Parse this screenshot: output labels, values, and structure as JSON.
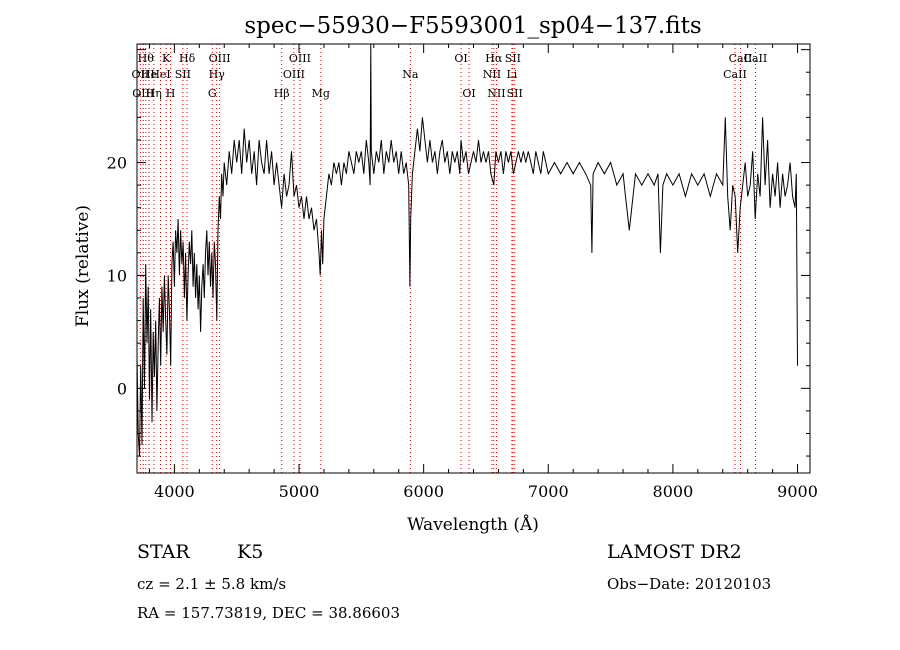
{
  "chart_data": {
    "type": "line",
    "title": "spec−55930−F5593001_sp04−137.fits",
    "xlabel": "Wavelength (Å)",
    "ylabel": "Flux (relative)",
    "xlim": [
      3700,
      9100
    ],
    "ylim": [
      -7.5,
      30.5
    ],
    "x_ticks": [
      4000,
      5000,
      6000,
      7000,
      8000,
      9000
    ],
    "y_ticks": [
      0,
      10,
      20
    ],
    "grid": false,
    "series": [
      {
        "values": [
          [
            3700,
            3
          ],
          [
            3710,
            -4
          ],
          [
            3720,
            -6
          ],
          [
            3730,
            2
          ],
          [
            3740,
            -5
          ],
          [
            3750,
            8
          ],
          [
            3760,
            0
          ],
          [
            3770,
            11
          ],
          [
            3780,
            4
          ],
          [
            3790,
            9
          ],
          [
            3800,
            -1
          ],
          [
            3810,
            7
          ],
          [
            3820,
            -3
          ],
          [
            3830,
            5
          ],
          [
            3840,
            1
          ],
          [
            3850,
            6
          ],
          [
            3860,
            -2
          ],
          [
            3870,
            4
          ],
          [
            3880,
            8
          ],
          [
            3890,
            2
          ],
          [
            3900,
            9
          ],
          [
            3910,
            5
          ],
          [
            3920,
            10
          ],
          [
            3930,
            6
          ],
          [
            3940,
            3
          ],
          [
            3950,
            10
          ],
          [
            3960,
            7
          ],
          [
            3970,
            2
          ],
          [
            3980,
            11
          ],
          [
            3990,
            13
          ],
          [
            4000,
            9
          ],
          [
            4010,
            14
          ],
          [
            4020,
            12
          ],
          [
            4030,
            15
          ],
          [
            4040,
            10
          ],
          [
            4050,
            14
          ],
          [
            4060,
            11
          ],
          [
            4070,
            13
          ],
          [
            4080,
            8
          ],
          [
            4090,
            12
          ],
          [
            4100,
            6
          ],
          [
            4110,
            10
          ],
          [
            4120,
            13
          ],
          [
            4130,
            11
          ],
          [
            4140,
            14
          ],
          [
            4150,
            9
          ],
          [
            4160,
            12
          ],
          [
            4170,
            8
          ],
          [
            4180,
            11
          ],
          [
            4190,
            7
          ],
          [
            4200,
            10
          ],
          [
            4210,
            5
          ],
          [
            4220,
            9
          ],
          [
            4230,
            11
          ],
          [
            4240,
            8
          ],
          [
            4250,
            12
          ],
          [
            4260,
            14
          ],
          [
            4270,
            10
          ],
          [
            4280,
            13
          ],
          [
            4290,
            9
          ],
          [
            4300,
            12
          ],
          [
            4310,
            8
          ],
          [
            4320,
            13
          ],
          [
            4330,
            11
          ],
          [
            4340,
            6
          ],
          [
            4350,
            14
          ],
          [
            4360,
            17
          ],
          [
            4370,
            15
          ],
          [
            4380,
            19
          ],
          [
            4390,
            17
          ],
          [
            4400,
            20
          ],
          [
            4420,
            18
          ],
          [
            4440,
            21
          ],
          [
            4460,
            19
          ],
          [
            4480,
            22
          ],
          [
            4500,
            20
          ],
          [
            4520,
            22
          ],
          [
            4540,
            19
          ],
          [
            4560,
            23
          ],
          [
            4580,
            20
          ],
          [
            4600,
            22
          ],
          [
            4620,
            19
          ],
          [
            4640,
            21
          ],
          [
            4660,
            18
          ],
          [
            4680,
            22
          ],
          [
            4700,
            20
          ],
          [
            4720,
            19
          ],
          [
            4740,
            22
          ],
          [
            4760,
            19
          ],
          [
            4780,
            21
          ],
          [
            4800,
            18
          ],
          [
            4820,
            20
          ],
          [
            4840,
            18
          ],
          [
            4860,
            16
          ],
          [
            4880,
            19
          ],
          [
            4900,
            17
          ],
          [
            4920,
            18
          ],
          [
            4940,
            21
          ],
          [
            4960,
            17
          ],
          [
            4980,
            18
          ],
          [
            5000,
            16
          ],
          [
            5020,
            17
          ],
          [
            5040,
            15
          ],
          [
            5060,
            17
          ],
          [
            5080,
            15
          ],
          [
            5100,
            16
          ],
          [
            5120,
            14
          ],
          [
            5140,
            15
          ],
          [
            5160,
            12
          ],
          [
            5170,
            10
          ],
          [
            5180,
            14
          ],
          [
            5190,
            11
          ],
          [
            5200,
            15
          ],
          [
            5220,
            17
          ],
          [
            5240,
            19
          ],
          [
            5260,
            18
          ],
          [
            5280,
            20
          ],
          [
            5300,
            19
          ],
          [
            5320,
            20
          ],
          [
            5340,
            18
          ],
          [
            5360,
            20
          ],
          [
            5380,
            19
          ],
          [
            5400,
            21
          ],
          [
            5420,
            20
          ],
          [
            5440,
            19
          ],
          [
            5460,
            21
          ],
          [
            5480,
            20
          ],
          [
            5500,
            21
          ],
          [
            5520,
            19
          ],
          [
            5540,
            22
          ],
          [
            5560,
            20
          ],
          [
            5570,
            18
          ],
          [
            5576,
            31
          ],
          [
            5580,
            21
          ],
          [
            5600,
            19
          ],
          [
            5620,
            21
          ],
          [
            5640,
            20
          ],
          [
            5660,
            22
          ],
          [
            5680,
            19
          ],
          [
            5700,
            21
          ],
          [
            5720,
            20
          ],
          [
            5740,
            22
          ],
          [
            5760,
            20
          ],
          [
            5780,
            21
          ],
          [
            5800,
            19
          ],
          [
            5820,
            21
          ],
          [
            5840,
            19
          ],
          [
            5860,
            20
          ],
          [
            5880,
            18
          ],
          [
            5890,
            9
          ],
          [
            5896,
            15
          ],
          [
            5910,
            19
          ],
          [
            5930,
            21
          ],
          [
            5950,
            23
          ],
          [
            5970,
            21
          ],
          [
            5990,
            24
          ],
          [
            6010,
            22
          ],
          [
            6030,
            20
          ],
          [
            6050,
            22
          ],
          [
            6070,
            20
          ],
          [
            6090,
            21
          ],
          [
            6110,
            19
          ],
          [
            6130,
            21
          ],
          [
            6150,
            22
          ],
          [
            6170,
            20
          ],
          [
            6190,
            21
          ],
          [
            6210,
            19
          ],
          [
            6230,
            21
          ],
          [
            6250,
            20
          ],
          [
            6270,
            21
          ],
          [
            6290,
            19
          ],
          [
            6300,
            22
          ],
          [
            6320,
            20
          ],
          [
            6340,
            21
          ],
          [
            6360,
            19
          ],
          [
            6380,
            20
          ],
          [
            6400,
            21
          ],
          [
            6420,
            20
          ],
          [
            6440,
            22
          ],
          [
            6460,
            20
          ],
          [
            6480,
            21
          ],
          [
            6500,
            20
          ],
          [
            6520,
            21
          ],
          [
            6540,
            19
          ],
          [
            6563,
            18
          ],
          [
            6580,
            21
          ],
          [
            6600,
            20
          ],
          [
            6620,
            21
          ],
          [
            6640,
            19
          ],
          [
            6660,
            21
          ],
          [
            6680,
            20
          ],
          [
            6700,
            21
          ],
          [
            6720,
            19
          ],
          [
            6740,
            20
          ],
          [
            6760,
            21
          ],
          [
            6780,
            20
          ],
          [
            6800,
            21
          ],
          [
            6820,
            20
          ],
          [
            6840,
            21
          ],
          [
            6860,
            20
          ],
          [
            6880,
            19
          ],
          [
            6900,
            21
          ],
          [
            6920,
            20
          ],
          [
            6940,
            19
          ],
          [
            6960,
            21
          ],
          [
            6980,
            20
          ],
          [
            7000,
            19
          ],
          [
            7050,
            20
          ],
          [
            7100,
            19
          ],
          [
            7150,
            20
          ],
          [
            7200,
            19
          ],
          [
            7250,
            20
          ],
          [
            7300,
            19
          ],
          [
            7340,
            18
          ],
          [
            7350,
            12
          ],
          [
            7360,
            19
          ],
          [
            7400,
            20
          ],
          [
            7450,
            19
          ],
          [
            7500,
            20
          ],
          [
            7550,
            18
          ],
          [
            7600,
            19
          ],
          [
            7620,
            17
          ],
          [
            7650,
            14
          ],
          [
            7700,
            19
          ],
          [
            7750,
            18
          ],
          [
            7800,
            19
          ],
          [
            7850,
            18
          ],
          [
            7880,
            19
          ],
          [
            7900,
            12
          ],
          [
            7920,
            18
          ],
          [
            7950,
            19
          ],
          [
            8000,
            18
          ],
          [
            8050,
            19
          ],
          [
            8100,
            17
          ],
          [
            8150,
            19
          ],
          [
            8200,
            18
          ],
          [
            8250,
            19
          ],
          [
            8300,
            17
          ],
          [
            8350,
            19
          ],
          [
            8400,
            18
          ],
          [
            8420,
            24
          ],
          [
            8440,
            17
          ],
          [
            8460,
            14
          ],
          [
            8480,
            18
          ],
          [
            8500,
            17
          ],
          [
            8520,
            12
          ],
          [
            8540,
            16
          ],
          [
            8560,
            18
          ],
          [
            8580,
            20
          ],
          [
            8600,
            17
          ],
          [
            8620,
            18
          ],
          [
            8640,
            21
          ],
          [
            8660,
            15
          ],
          [
            8680,
            19
          ],
          [
            8700,
            17
          ],
          [
            8720,
            24
          ],
          [
            8740,
            18
          ],
          [
            8760,
            22
          ],
          [
            8780,
            16
          ],
          [
            8800,
            19
          ],
          [
            8820,
            17
          ],
          [
            8840,
            20
          ],
          [
            8860,
            16
          ],
          [
            8880,
            19
          ],
          [
            8900,
            17
          ],
          [
            8920,
            18
          ],
          [
            8940,
            20
          ],
          [
            8960,
            17
          ],
          [
            8980,
            16
          ],
          [
            8990,
            19
          ],
          [
            9000,
            2
          ]
        ]
      }
    ],
    "lines": [
      {
        "x": 3727,
        "label": "OII",
        "row": 1
      },
      {
        "x": 3750,
        "label": "OIII",
        "row": 2
      },
      {
        "x": 3770,
        "label": "Hθ",
        "row": 0
      },
      {
        "x": 3797,
        "label": "He",
        "row": 1
      },
      {
        "x": 3835,
        "label": "Hη",
        "row": 2
      },
      {
        "x": 3889,
        "label": "HeI",
        "row": 1
      },
      {
        "x": 3934,
        "label": "K",
        "row": 0
      },
      {
        "x": 3969,
        "label": "H",
        "row": 2
      },
      {
        "x": 4068,
        "label": "SII",
        "row": 1
      },
      {
        "x": 4102,
        "label": "Hδ",
        "row": 0
      },
      {
        "x": 4304,
        "label": "G",
        "row": 2
      },
      {
        "x": 4340,
        "label": "Hγ",
        "row": 1
      },
      {
        "x": 4363,
        "label": "OIII",
        "row": 0
      },
      {
        "x": 4861,
        "label": "Hβ",
        "row": 2
      },
      {
        "x": 4959,
        "label": "OIII",
        "row": 1
      },
      {
        "x": 5007,
        "label": "OIII",
        "row": 0
      },
      {
        "x": 5175,
        "label": "Mg",
        "row": 2
      },
      {
        "x": 5893,
        "label": "Na",
        "row": 1
      },
      {
        "x": 6300,
        "label": "OI",
        "row": 0
      },
      {
        "x": 6364,
        "label": "OI",
        "row": 2
      },
      {
        "x": 6548,
        "label": "NII",
        "row": 1
      },
      {
        "x": 6563,
        "label": "Hα",
        "row": 0
      },
      {
        "x": 6584,
        "label": "NII",
        "row": 2
      },
      {
        "x": 6708,
        "label": "Li",
        "row": 1
      },
      {
        "x": 6716,
        "label": "SII",
        "row": 0
      },
      {
        "x": 6731,
        "label": "SII",
        "row": 2
      },
      {
        "x": 8498,
        "label": "CaII",
        "row": 1
      },
      {
        "x": 8542,
        "label": "CaII",
        "row": 0
      },
      {
        "x": 8662,
        "label": "CaII",
        "row": 0
      }
    ],
    "line_color": "#cc0000"
  },
  "info": {
    "object_class": "STAR",
    "subclass": "K5",
    "survey": "LAMOST DR2",
    "redshift": "cz = 2.1 ± 5.8 km/s",
    "obs_date": "Obs−Date: 20120103",
    "coords": "RA = 157.73819, DEC =  38.86603"
  }
}
